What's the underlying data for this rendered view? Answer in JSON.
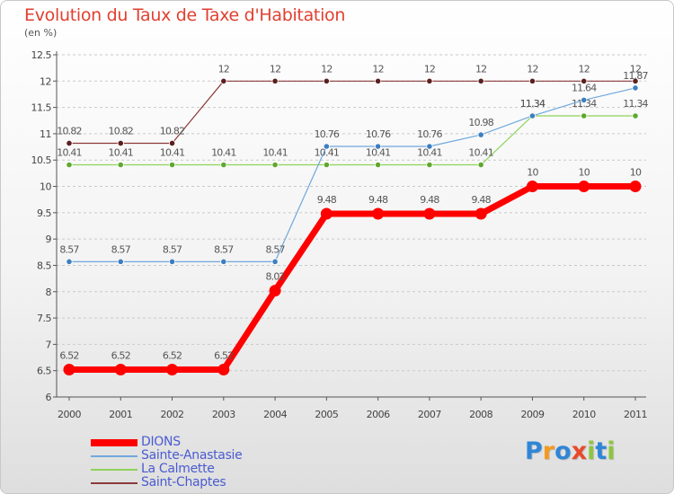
{
  "title": "Evolution du Taux de Taxe d'Habitation",
  "subtitle": "(en %)",
  "logo": {
    "text": "Proxiti",
    "letters": [
      {
        "ch": "P",
        "color": "#2f86d6"
      },
      {
        "ch": "r",
        "color": "#f29a1f"
      },
      {
        "ch": "o",
        "color": "#2f86d6"
      },
      {
        "ch": "x",
        "color": "#e84a2c"
      },
      {
        "ch": "i",
        "color": "#8cc63f"
      },
      {
        "ch": "t",
        "color": "#2f86d6"
      },
      {
        "ch": "i",
        "color": "#8cc63f"
      }
    ]
  },
  "chart_data": {
    "type": "line",
    "title": "Evolution du Taux de Taxe d'Habitation",
    "ylabel": "(en %)",
    "xlabel": "",
    "categories": [
      "2000",
      "2001",
      "2002",
      "2003",
      "2004",
      "2005",
      "2006",
      "2007",
      "2008",
      "2009",
      "2010",
      "2011"
    ],
    "ylim": [
      6,
      12.5
    ],
    "yticks": [
      6,
      6.5,
      7,
      7.5,
      8,
      8.5,
      9,
      9.5,
      10,
      10.5,
      11,
      11.5,
      12,
      12.5
    ],
    "ytick_labels": [
      "6",
      "6.5",
      "7",
      "7.5",
      "8",
      "8.5",
      "9",
      "9.5",
      "10",
      "10.5",
      "11",
      "11.5",
      "12",
      "12.5"
    ],
    "grid": "horizontal dashed",
    "legend_position": "bottom-left",
    "series": [
      {
        "name": "DIONS",
        "color": "#ff0000",
        "values": [
          6.52,
          6.52,
          6.52,
          6.52,
          8.02,
          9.48,
          9.48,
          9.48,
          9.48,
          10,
          10,
          10
        ],
        "labels": [
          "6.52",
          "6.52",
          "6.52",
          "6.52",
          "8.02",
          "9.48",
          "9.48",
          "9.48",
          "9.48",
          "10",
          "10",
          "10"
        ]
      },
      {
        "name": "Sainte-Anastasie",
        "color": "#6fa8dc",
        "values": [
          8.57,
          8.57,
          8.57,
          8.57,
          8.57,
          10.76,
          10.76,
          10.76,
          10.98,
          11.34,
          11.64,
          11.87
        ],
        "labels": [
          "8.57",
          "8.57",
          "8.57",
          "8.57",
          "8.57",
          "10.76",
          "10.76",
          "10.76",
          "10.98",
          "11.34",
          "11.64",
          "11.87"
        ]
      },
      {
        "name": "La Calmette",
        "color": "#8fd35a",
        "values": [
          10.41,
          10.41,
          10.41,
          10.41,
          10.41,
          10.41,
          10.41,
          10.41,
          10.41,
          11.34,
          11.34,
          11.34
        ],
        "labels": [
          "10.41",
          "10.41",
          "10.41",
          "10.41",
          "10.41",
          "10.41",
          "10.41",
          "10.41",
          "10.41",
          "11.34",
          "11.34",
          "11.34"
        ]
      },
      {
        "name": "Saint-Chaptes",
        "color": "#8b3a3a",
        "values": [
          10.82,
          10.82,
          10.82,
          12,
          12,
          12,
          12,
          12,
          12,
          12,
          12,
          12
        ],
        "labels": [
          "10.82",
          "10.82",
          "10.82",
          "12",
          "12",
          "12",
          "12",
          "12",
          "12",
          "12",
          "12",
          "12"
        ]
      }
    ]
  }
}
